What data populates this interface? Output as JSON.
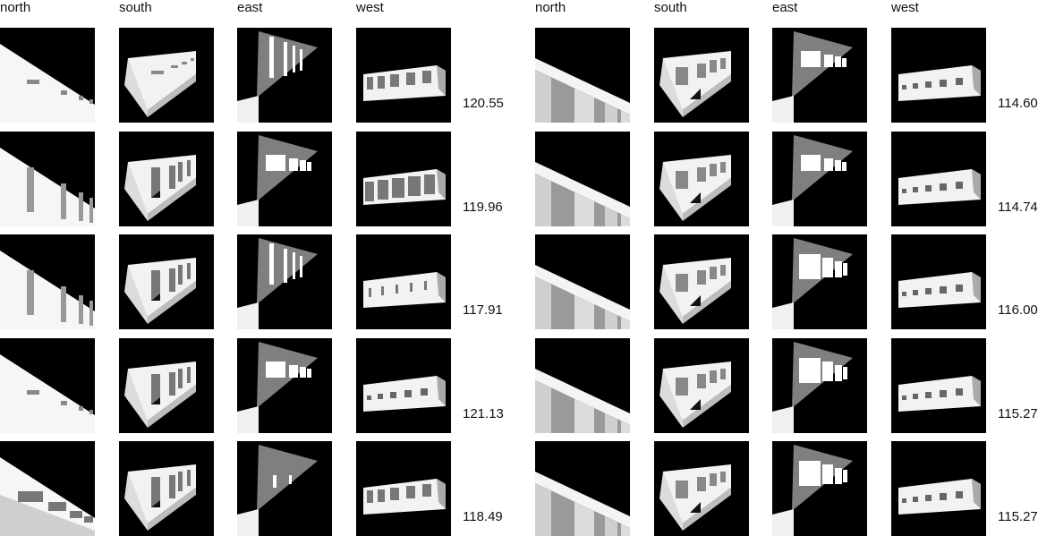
{
  "panels": [
    {
      "headers": [
        "north",
        "south",
        "east",
        "west"
      ],
      "rows": [
        {
          "score": "120.55",
          "views": [
            "north-slits",
            "south-slits",
            "east-tall-slits",
            "west-openings"
          ]
        },
        {
          "score": "119.96",
          "views": [
            "north-tall-slits",
            "south-doors",
            "east-windows",
            "west-large-openings"
          ]
        },
        {
          "score": "117.91",
          "views": [
            "north-tall-slits",
            "south-doors",
            "east-tall-slits",
            "west-slits"
          ]
        },
        {
          "score": "121.13",
          "views": [
            "north-slits",
            "south-doors",
            "east-windows",
            "west-small-openings"
          ]
        },
        {
          "score": "118.49",
          "views": [
            "north-long-windows",
            "south-doors",
            "east-slits",
            "west-openings"
          ]
        }
      ]
    },
    {
      "headers": [
        "north",
        "south",
        "east",
        "west"
      ],
      "rows": [
        {
          "score": "114.60",
          "views": [
            "north-columns",
            "south-arcade",
            "east-windows",
            "west-small-openings"
          ]
        },
        {
          "score": "114.74",
          "views": [
            "north-columns",
            "south-arcade",
            "east-windows",
            "west-small-openings"
          ]
        },
        {
          "score": "116.00",
          "views": [
            "north-columns",
            "south-arcade",
            "east-large-windows",
            "west-small-openings"
          ]
        },
        {
          "score": "115.27",
          "views": [
            "north-columns",
            "south-arcade",
            "east-large-windows",
            "west-small-openings"
          ]
        },
        {
          "score": "115.27",
          "views": [
            "north-columns",
            "south-arcade",
            "east-large-windows",
            "west-small-openings"
          ]
        }
      ]
    }
  ]
}
